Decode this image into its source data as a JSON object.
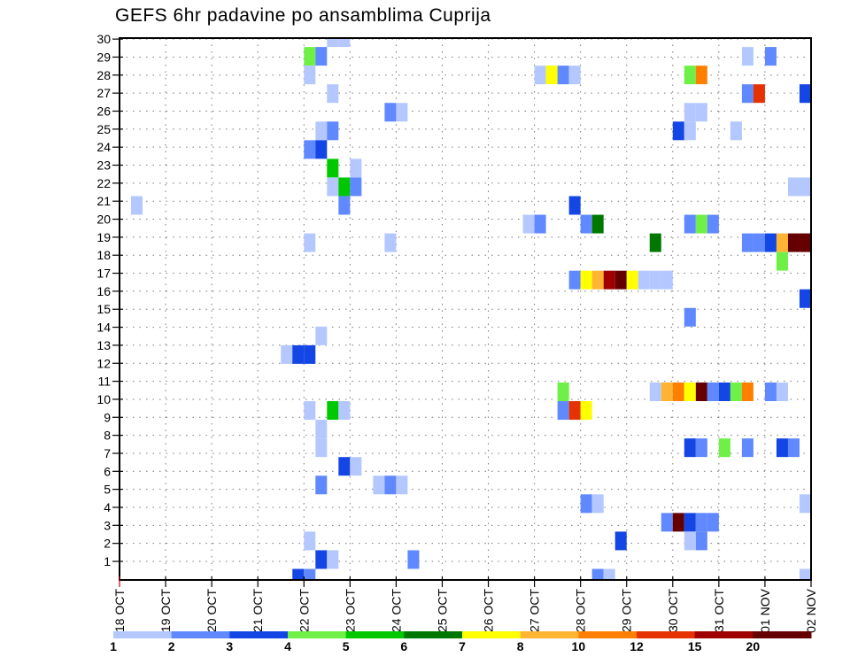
{
  "chart_data": {
    "type": "heatmap",
    "title": "GEFS 6hr padavine po ansamblima Cuprija",
    "xlabel": "",
    "ylabel": "",
    "x_unit": "6-hour step (index 0 = 18 OCT 00Z)",
    "x_steps": 60,
    "x_ticks": [
      "18 OCT",
      "19 OCT",
      "20 OCT",
      "21 OCT",
      "22 OCT",
      "23 OCT",
      "24 OCT",
      "25 OCT",
      "26 OCT",
      "27 OCT",
      "28 OCT",
      "29 OCT",
      "30 OCT",
      "31 OCT",
      "01 NOV",
      "02 NOV"
    ],
    "y_ticks": [
      "1",
      "2",
      "3",
      "4",
      "5",
      "6",
      "7",
      "8",
      "9",
      "10",
      "11",
      "12",
      "13",
      "14",
      "15",
      "16",
      "17",
      "18",
      "19",
      "20",
      "21",
      "22",
      "23",
      "24",
      "25",
      "26",
      "27",
      "28",
      "29",
      "30"
    ],
    "grid": true,
    "legend": {
      "placement": "bottom",
      "labels": [
        "1",
        "2",
        "3",
        "4",
        "5",
        "6",
        "7",
        "8",
        "10",
        "12",
        "15",
        "20"
      ],
      "colors": [
        "#b4c8ff",
        "#6088ff",
        "#1446e6",
        "#6ef046",
        "#00c800",
        "#007800",
        "#ffff00",
        "#ffb432",
        "#ff8000",
        "#e63200",
        "#a00000",
        "#640000"
      ]
    },
    "cells_format": "[member_row, time_step, color_class]",
    "cells": [
      [
        29,
        18,
        0
      ],
      [
        29,
        19,
        0
      ],
      [
        28,
        16,
        3
      ],
      [
        28,
        17,
        1
      ],
      [
        28,
        54,
        0
      ],
      [
        28,
        56,
        1
      ],
      [
        27,
        16,
        0
      ],
      [
        27,
        36,
        0
      ],
      [
        27,
        37,
        6
      ],
      [
        27,
        38,
        1
      ],
      [
        27,
        39,
        0
      ],
      [
        27,
        49,
        3
      ],
      [
        27,
        50,
        8
      ],
      [
        26,
        18,
        0
      ],
      [
        26,
        54,
        1
      ],
      [
        26,
        55,
        9
      ],
      [
        26,
        59,
        2
      ],
      [
        25,
        23,
        1
      ],
      [
        25,
        24,
        0
      ],
      [
        25,
        49,
        0
      ],
      [
        25,
        50,
        0
      ],
      [
        24,
        17,
        0
      ],
      [
        24,
        18,
        1
      ],
      [
        24,
        48,
        2
      ],
      [
        24,
        49,
        0
      ],
      [
        24,
        53,
        0
      ],
      [
        23,
        16,
        1
      ],
      [
        23,
        17,
        2
      ],
      [
        22,
        18,
        4
      ],
      [
        22,
        20,
        0
      ],
      [
        21,
        18,
        0
      ],
      [
        21,
        19,
        4
      ],
      [
        21,
        20,
        1
      ],
      [
        21,
        58,
        0
      ],
      [
        21,
        59,
        0
      ],
      [
        20,
        1,
        0
      ],
      [
        20,
        19,
        1
      ],
      [
        20,
        39,
        2
      ],
      [
        19,
        35,
        0
      ],
      [
        19,
        36,
        1
      ],
      [
        19,
        40,
        1
      ],
      [
        19,
        41,
        5
      ],
      [
        19,
        49,
        1
      ],
      [
        19,
        50,
        3
      ],
      [
        19,
        51,
        1
      ],
      [
        18,
        16,
        0
      ],
      [
        18,
        23,
        0
      ],
      [
        18,
        46,
        5
      ],
      [
        18,
        54,
        1
      ],
      [
        18,
        55,
        1
      ],
      [
        18,
        56,
        2
      ],
      [
        18,
        57,
        7
      ],
      [
        18,
        58,
        11
      ],
      [
        18,
        59,
        11
      ],
      [
        17,
        57,
        3
      ],
      [
        16,
        39,
        1
      ],
      [
        16,
        40,
        6
      ],
      [
        16,
        41,
        7
      ],
      [
        16,
        42,
        10
      ],
      [
        16,
        43,
        11
      ],
      [
        16,
        44,
        6
      ],
      [
        16,
        45,
        0
      ],
      [
        16,
        46,
        0
      ],
      [
        16,
        47,
        0
      ],
      [
        15,
        59,
        2
      ],
      [
        14,
        49,
        1
      ],
      [
        13,
        17,
        0
      ],
      [
        12,
        14,
        0
      ],
      [
        12,
        15,
        2
      ],
      [
        12,
        16,
        2
      ],
      [
        10,
        38,
        3
      ],
      [
        10,
        46,
        0
      ],
      [
        10,
        47,
        7
      ],
      [
        10,
        48,
        8
      ],
      [
        10,
        49,
        6
      ],
      [
        10,
        50,
        11
      ],
      [
        10,
        51,
        1
      ],
      [
        10,
        52,
        2
      ],
      [
        10,
        53,
        3
      ],
      [
        10,
        54,
        8
      ],
      [
        10,
        56,
        1
      ],
      [
        10,
        57,
        0
      ],
      [
        9,
        16,
        0
      ],
      [
        9,
        18,
        4
      ],
      [
        9,
        19,
        0
      ],
      [
        9,
        38,
        1
      ],
      [
        9,
        39,
        9
      ],
      [
        9,
        40,
        6
      ],
      [
        8,
        17,
        0
      ],
      [
        7,
        17,
        0
      ],
      [
        7,
        49,
        2
      ],
      [
        7,
        50,
        1
      ],
      [
        7,
        52,
        3
      ],
      [
        7,
        54,
        1
      ],
      [
        7,
        57,
        2
      ],
      [
        7,
        58,
        1
      ],
      [
        6,
        19,
        2
      ],
      [
        6,
        20,
        0
      ],
      [
        5,
        17,
        1
      ],
      [
        5,
        22,
        0
      ],
      [
        5,
        23,
        1
      ],
      [
        5,
        24,
        0
      ],
      [
        4,
        40,
        1
      ],
      [
        4,
        41,
        0
      ],
      [
        4,
        59,
        0
      ],
      [
        3,
        47,
        1
      ],
      [
        3,
        48,
        11
      ],
      [
        3,
        49,
        2
      ],
      [
        3,
        50,
        1
      ],
      [
        3,
        51,
        1
      ],
      [
        2,
        16,
        0
      ],
      [
        2,
        43,
        2
      ],
      [
        2,
        49,
        0
      ],
      [
        2,
        50,
        1
      ],
      [
        1,
        17,
        2
      ],
      [
        1,
        18,
        0
      ],
      [
        1,
        25,
        1
      ],
      [
        0,
        15,
        2
      ],
      [
        0,
        16,
        1
      ],
      [
        0,
        41,
        1
      ],
      [
        0,
        42,
        0
      ],
      [
        0,
        59,
        0
      ]
    ]
  }
}
